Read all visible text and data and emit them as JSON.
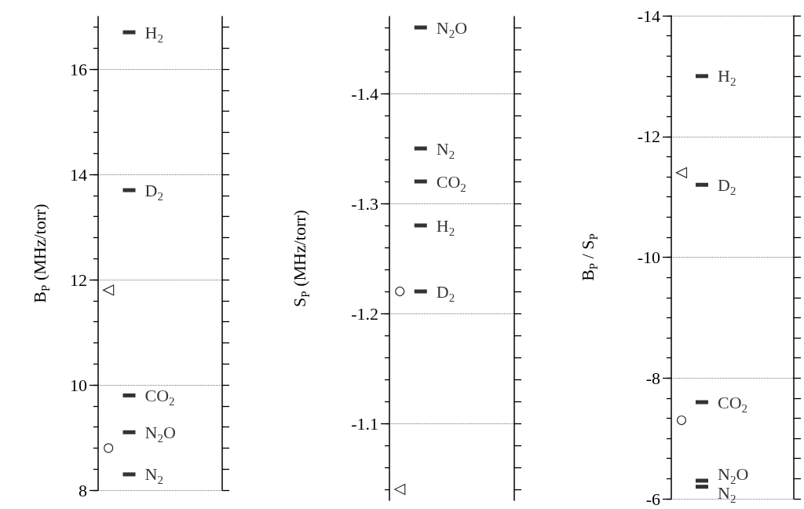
{
  "chart_data": [
    {
      "type": "scatter",
      "ylabel": "B$_{P}$ (MHz/torr)",
      "categories": [
        null,
        null,
        null,
        null,
        null,
        null
      ],
      "ylim": [
        8,
        17
      ],
      "yticks": [
        8,
        {
          "value": 8.4,
          "label": null
        },
        {
          "value": 8.8,
          "label": null
        },
        {
          "value": 9.2,
          "label": null
        },
        {
          "value": 9.6,
          "label": null
        },
        10,
        {
          "value": 10.4,
          "label": null
        },
        {
          "value": 10.8,
          "label": null
        },
        {
          "value": 11.2,
          "label": null
        },
        {
          "value": 11.6,
          "label": null
        },
        12,
        {
          "value": 12.4,
          "label": null
        },
        {
          "value": 12.8,
          "label": null
        },
        {
          "value": 13.2,
          "label": null
        },
        {
          "value": 13.6,
          "label": null
        },
        14,
        {
          "value": 14.4,
          "label": null
        },
        {
          "value": 14.8,
          "label": null
        },
        {
          "value": 15.2,
          "label": null
        },
        {
          "value": 15.6,
          "label": null
        },
        16,
        {
          "value": 16.4,
          "label": null
        },
        {
          "value": 16.8,
          "label": null
        }
      ],
      "grid": "y",
      "tick_labels": "y",
      "series": [
        {
          "name": "H$_{2}$",
          "color": "#000000",
          "marker": "square",
          "values": [
            null,
            16.7,
            null,
            null,
            null,
            null
          ]
        },
        {
          "name": "D$_{2}$",
          "color": "#000000",
          "marker": "square",
          "values": [
            null,
            13.7,
            null,
            null,
            null,
            null
          ]
        },
        {
          "name": "CO$_{2}$",
          "color": "#000000",
          "marker": "square",
          "values": [
            null,
            9.8,
            null,
            null,
            null,
            null
          ]
        },
        {
          "name": "N$_{2}$O",
          "color": "#000000",
          "marker": "square",
          "values": [
            null,
            9.1,
            null,
            null,
            null,
            null
          ]
        },
        {
          "name": "N$_{2}$",
          "color": "#000000",
          "marker": "square",
          "values": [
            null,
            8.3,
            null,
            null,
            null,
            null
          ]
        },
        {
          "color": "#000000",
          "marker": "circle",
          "values": [
            8.8,
            null,
            null,
            null,
            null,
            null
          ]
        },
        {
          "color": "#000000",
          "marker": "triangle",
          "values": [
            11.8,
            null,
            null,
            null,
            null,
            null
          ]
        }
      ]
    },
    {
      "type": "scatter",
      "ylabel": "S$_{P}$ (MHz/torr)",
      "categories": [
        null,
        null,
        null,
        null,
        null,
        null
      ],
      "ylim": [
        -1.03,
        -1.47
      ],
      "yticks": [
        {
          "value": -1.04,
          "label": null
        },
        {
          "value": -1.06,
          "label": null
        },
        {
          "value": -1.08,
          "label": null
        },
        -1.1,
        {
          "value": -1.12,
          "label": null
        },
        {
          "value": -1.14,
          "label": null
        },
        {
          "value": -1.16,
          "label": null
        },
        {
          "value": -1.18,
          "label": null
        },
        -1.2,
        {
          "value": -1.22,
          "label": null
        },
        {
          "value": -1.24,
          "label": null
        },
        {
          "value": -1.26,
          "label": null
        },
        {
          "value": -1.28,
          "label": null
        },
        -1.3,
        {
          "value": -1.32,
          "label": null
        },
        {
          "value": -1.34,
          "label": null
        },
        {
          "value": -1.36,
          "label": null
        },
        {
          "value": -1.38,
          "label": null
        },
        -1.4,
        {
          "value": -1.42,
          "label": null
        },
        {
          "value": -1.44,
          "label": null
        },
        {
          "value": -1.46,
          "label": null
        }
      ],
      "grid": "y",
      "tick_labels": "y",
      "series": [
        {
          "name": "N$_{2}$O",
          "color": "#000000",
          "marker": "square",
          "values": [
            null,
            -1.46,
            null,
            null,
            null,
            null
          ]
        },
        {
          "name": "N$_{2}$",
          "color": "#000000",
          "marker": "square",
          "values": [
            null,
            -1.35,
            null,
            null,
            null,
            null
          ]
        },
        {
          "name": "CO$_{2}$",
          "color": "#000000",
          "marker": "square",
          "values": [
            null,
            -1.32,
            null,
            null,
            null,
            null
          ]
        },
        {
          "name": "H$_{2}$",
          "color": "#000000",
          "marker": "square",
          "values": [
            null,
            -1.28,
            null,
            null,
            null,
            null
          ]
        },
        {
          "name": "D$_{2}$",
          "color": "#000000",
          "marker": "square",
          "values": [
            null,
            -1.22,
            null,
            null,
            null,
            null
          ]
        },
        {
          "color": "#000000",
          "marker": "circle",
          "values": [
            -1.22,
            null,
            null,
            null,
            null,
            null
          ]
        },
        {
          "color": "#000000",
          "marker": "triangle",
          "values": [
            -1.04,
            null,
            null,
            null,
            null,
            null
          ]
        }
      ]
    },
    {
      "type": "scatter",
      "ylabel": "B$_{P}$ / S$_{P}$",
      "categories": [
        null,
        null,
        null,
        null,
        null,
        null
      ],
      "ylim": [
        -6,
        -14
      ],
      "yticks": [
        -14,
        {
          "value": -13.667,
          "label": null
        },
        {
          "value": -13.333,
          "label": null
        },
        {
          "value": -13,
          "label": null
        },
        {
          "value": -12.667,
          "label": null
        },
        {
          "value": -12.333,
          "label": null
        },
        -12,
        {
          "value": -11.667,
          "label": null
        },
        {
          "value": -11.333,
          "label": null
        },
        {
          "value": -11,
          "label": null
        },
        {
          "value": -10.667,
          "label": null
        },
        {
          "value": -10.333,
          "label": null
        },
        -10,
        {
          "value": -9.667,
          "label": null
        },
        {
          "value": -9.333,
          "label": null
        },
        {
          "value": -9,
          "label": null
        },
        {
          "value": -8.667,
          "label": null
        },
        {
          "value": -8.333,
          "label": null
        },
        -8,
        {
          "value": -7.667,
          "label": null
        },
        {
          "value": -7.333,
          "label": null
        },
        {
          "value": -7,
          "label": null
        },
        {
          "value": -6.667,
          "label": null
        },
        {
          "value": -6.333,
          "label": null
        },
        -6
      ],
      "grid": "y",
      "tick_labels": "y",
      "series": [
        {
          "name": "H$_{2}$",
          "color": "#000000",
          "marker": "square",
          "values": [
            null,
            -13.0,
            null,
            null,
            null,
            null
          ]
        },
        {
          "name": "D$_{2}$",
          "color": "#000000",
          "marker": "square",
          "values": [
            null,
            -11.2,
            null,
            null,
            null,
            null
          ]
        },
        {
          "name": "CO$_{2}$",
          "color": "#000000",
          "marker": "square",
          "values": [
            null,
            -7.6,
            null,
            null,
            null,
            null
          ]
        },
        {
          "name": "N$_{2}$O",
          "color": "#000000",
          "marker": "square",
          "values": [
            null,
            -6.3,
            null,
            null,
            null,
            null
          ]
        },
        {
          "name": "N$_{2}$",
          "color": "#000000",
          "marker": "square",
          "values": [
            null,
            -6.2,
            null,
            null,
            null,
            null
          ]
        },
        {
          "color": "#000000",
          "marker": "circle",
          "values": [
            -7.3,
            null,
            null,
            null,
            null,
            null
          ]
        },
        {
          "color": "#000000",
          "marker": "triangle",
          "values": [
            -11.4,
            null,
            null,
            null,
            null,
            null
          ]
        }
      ]
    }
  ]
}
